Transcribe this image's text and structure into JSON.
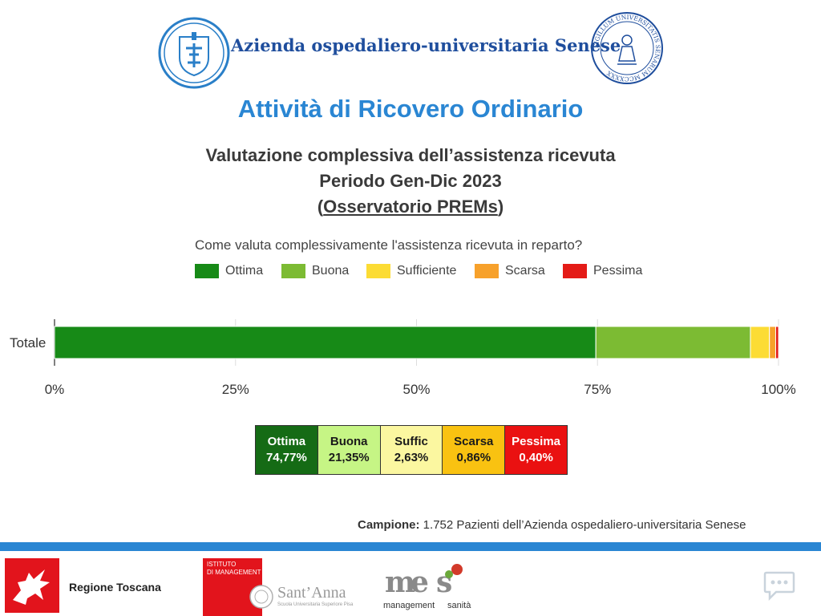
{
  "header": {
    "org_name": "Azienda ospedaliero-universitaria Senese",
    "right_seal_text": "SIGILLUM UNIVERSITATIS SENARUM MCCXXXX",
    "left_logo_icon": "hospital-crest-icon"
  },
  "title": "Attività di Ricovero Ordinario",
  "subtitle": {
    "line1": "Valutazione complessiva dell’assistenza ricevuta",
    "line2": "Periodo Gen-Dic 2023",
    "line3_open": "(",
    "line3_underlined": "Osservatorio PREMs",
    "line3_close": ")"
  },
  "chart_data": {
    "type": "bar",
    "orientation": "horizontal-stacked-100",
    "title": "Come valuta complessivamente l'assistenza ricevuta in reparto?",
    "categories": [
      "Totale"
    ],
    "series": [
      {
        "name": "Ottima",
        "values": [
          74.77
        ],
        "color": "#178a17"
      },
      {
        "name": "Buona",
        "values": [
          21.35
        ],
        "color": "#7cbb33"
      },
      {
        "name": "Sufficiente",
        "values": [
          2.63
        ],
        "color": "#fcdc34"
      },
      {
        "name": "Scarsa",
        "values": [
          0.86
        ],
        "color": "#f7a12b"
      },
      {
        "name": "Pessima",
        "values": [
          0.4
        ],
        "color": "#e41b17"
      }
    ],
    "xlim": [
      0,
      100
    ],
    "xticks": [
      "0%",
      "25%",
      "50%",
      "75%",
      "100%"
    ],
    "legend_position": "top",
    "grid": true
  },
  "value_table": [
    {
      "label": "Ottima",
      "value": "74,77%",
      "bg": "#156b15",
      "fg": "#ffffff"
    },
    {
      "label": "Buona",
      "value": "21,35%",
      "bg": "#c6f585",
      "fg": "#1a1a1a"
    },
    {
      "label": "Suffic",
      "value": "2,63%",
      "bg": "#fbf7a0",
      "fg": "#1a1a1a"
    },
    {
      "label": "Scarsa",
      "value": "0,86%",
      "bg": "#f9c211",
      "fg": "#1a1a1a"
    },
    {
      "label": "Pessima",
      "value": "0,40%",
      "bg": "#ea1111",
      "fg": "#ffffff"
    }
  ],
  "sample": {
    "label": "Campione:",
    "text": " 1.752 Pazienti dell’Azienda ospedaliero-universitaria Senese"
  },
  "footer": {
    "regione_label": "Regione Toscana",
    "regione_icon": "pegasus-icon",
    "istituto_label": "ISTITUTO\nDI MANAGEMENT",
    "santanna_name": "Sant’Anna",
    "santanna_sub": "Scuola Universitaria Superiore Pisa",
    "mes_label_left": "management",
    "mes_label_right": "sanità",
    "chat_icon": "chat-bubble-icon"
  },
  "colors": {
    "title_blue": "#2a86d3",
    "org_blue": "#1f4e9d",
    "footer_bar": "#2a86d3"
  }
}
